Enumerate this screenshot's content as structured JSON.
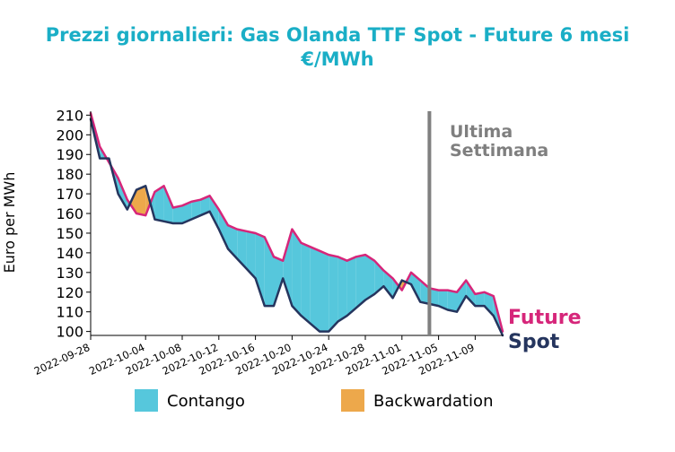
{
  "colors": {
    "title": "#1aaec6",
    "contango": "#56c7dc",
    "backwardation": "#eda84b",
    "future": "#d6267a",
    "spot": "#25355e",
    "vline": "#808080",
    "annotation": "#7f7f7f"
  },
  "chart_data": {
    "type": "area",
    "title_line1": "Prezzi giornalieri: Gas Olanda TTF Spot - Future 6 mesi",
    "title_line2": "€/MWh",
    "ylabel": "Euro per MWh",
    "xlabel": "",
    "ylim": [
      98,
      212
    ],
    "y_ticks": [
      100,
      110,
      120,
      130,
      140,
      150,
      160,
      170,
      180,
      190,
      200,
      210
    ],
    "x_tick_labels": [
      "2022-09-28",
      "2022-10-04",
      "2022-10-08",
      "2022-10-12",
      "2022-10-16",
      "2022-10-20",
      "2022-10-24",
      "2022-10-28",
      "2022-11-01",
      "2022-11-05",
      "2022-11-09"
    ],
    "x_start": "2022-09-28",
    "x_end": "2022-11-12",
    "annotation": {
      "date": "2022-11-04",
      "line1": "Ultima",
      "line2": "Settimana"
    },
    "series_labels": {
      "future": "Future",
      "spot": "Spot"
    },
    "legend": [
      {
        "label": "Contango",
        "color_key": "contango"
      },
      {
        "label": "Backwardation",
        "color_key": "backwardation"
      }
    ],
    "legend_placement": "bottom",
    "grid": false,
    "dates": [
      "2022-09-28",
      "2022-09-29",
      "2022-09-30",
      "2022-10-01",
      "2022-10-02",
      "2022-10-03",
      "2022-10-04",
      "2022-10-05",
      "2022-10-06",
      "2022-10-07",
      "2022-10-08",
      "2022-10-09",
      "2022-10-10",
      "2022-10-11",
      "2022-10-12",
      "2022-10-13",
      "2022-10-14",
      "2022-10-15",
      "2022-10-16",
      "2022-10-17",
      "2022-10-18",
      "2022-10-19",
      "2022-10-20",
      "2022-10-21",
      "2022-10-22",
      "2022-10-23",
      "2022-10-24",
      "2022-10-25",
      "2022-10-26",
      "2022-10-27",
      "2022-10-28",
      "2022-10-29",
      "2022-10-30",
      "2022-10-31",
      "2022-11-01",
      "2022-11-02",
      "2022-11-03",
      "2022-11-04",
      "2022-11-05",
      "2022-11-06",
      "2022-11-07",
      "2022-11-08",
      "2022-11-09",
      "2022-11-10",
      "2022-11-11",
      "2022-11-12"
    ],
    "series": [
      {
        "name": "Future",
        "color_key": "future",
        "values": [
          211,
          194,
          186,
          178,
          167,
          160,
          159,
          171,
          174,
          163,
          164,
          166,
          167,
          169,
          162,
          154,
          152,
          151,
          150,
          148,
          138,
          136,
          152,
          145,
          143,
          141,
          139,
          138,
          136,
          138,
          139,
          136,
          131,
          127,
          121,
          130,
          126,
          122,
          121,
          121,
          120,
          126,
          119,
          120,
          118,
          100
        ]
      },
      {
        "name": "Spot",
        "color_key": "spot",
        "values": [
          208,
          188,
          188,
          170,
          162,
          172,
          174,
          157,
          156,
          155,
          155,
          157,
          159,
          161,
          152,
          142,
          137,
          132,
          127,
          113,
          113,
          127,
          113,
          108,
          104,
          100,
          100,
          105,
          108,
          112,
          116,
          119,
          123,
          117,
          126,
          124,
          115,
          114,
          113,
          111,
          110,
          118,
          113,
          113,
          108,
          98
        ]
      }
    ]
  }
}
